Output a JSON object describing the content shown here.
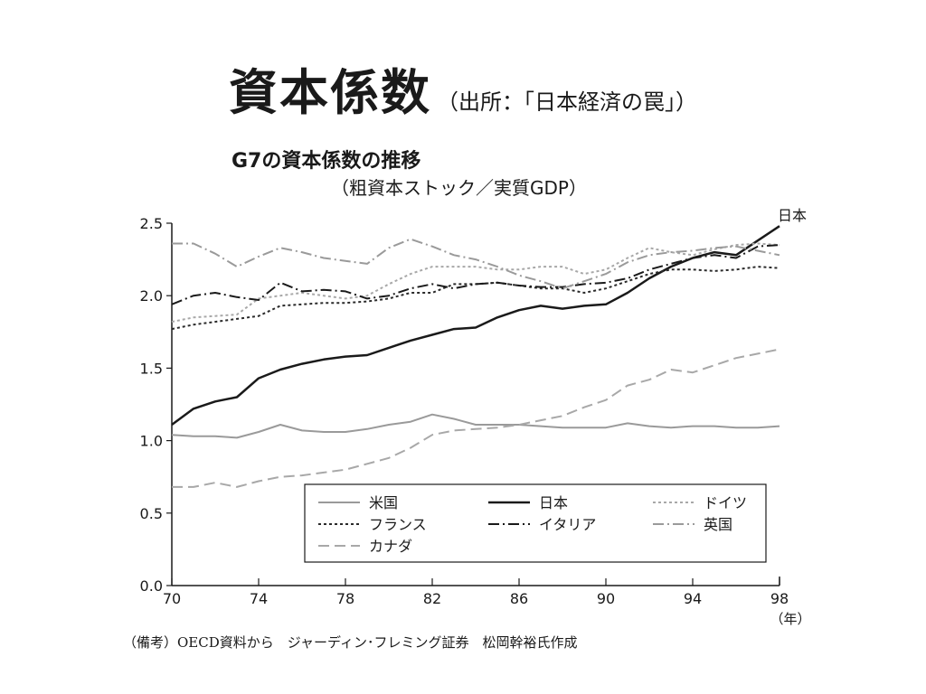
{
  "slide": {
    "title": "資本係数",
    "source": "（出所：「日本経済の罠」）",
    "footnote": "（備考）OECD資料から　ジャーディン･フレミング証券　松岡幹裕氏作成"
  },
  "chart_data": {
    "type": "line",
    "title": "G7の資本係数の推移",
    "subtitle": "（粗資本ストック／実質GDP）",
    "xlabel": "（年）",
    "ylabel": "",
    "xlim": [
      70,
      98
    ],
    "ylim": [
      0,
      2.5
    ],
    "x_ticks": [
      "70",
      "74",
      "78",
      "82",
      "86",
      "90",
      "94",
      "98"
    ],
    "y_ticks": [
      "0.0",
      "0.5",
      "1.0",
      "1.5",
      "2.0",
      "2.5"
    ],
    "annotations": [
      {
        "text": "日本",
        "series": "日本",
        "x": 98
      }
    ],
    "grid": false,
    "legend": "bottom-center box, 3 columns",
    "x": [
      70,
      71,
      72,
      73,
      74,
      75,
      76,
      77,
      78,
      79,
      80,
      81,
      82,
      83,
      84,
      85,
      86,
      87,
      88,
      89,
      90,
      91,
      92,
      93,
      94,
      95,
      96,
      97,
      98
    ],
    "series": [
      {
        "name": "米国",
        "color": "#9a9a9a",
        "dash": "solid",
        "values": [
          1.04,
          1.03,
          1.03,
          1.02,
          1.06,
          1.11,
          1.07,
          1.06,
          1.06,
          1.08,
          1.11,
          1.13,
          1.18,
          1.15,
          1.11,
          1.11,
          1.11,
          1.1,
          1.09,
          1.09,
          1.09,
          1.12,
          1.1,
          1.09,
          1.1,
          1.1,
          1.09,
          1.09,
          1.1
        ]
      },
      {
        "name": "日本",
        "color": "#1a1a1a",
        "dash": "solid",
        "values": [
          1.11,
          1.22,
          1.27,
          1.3,
          1.43,
          1.49,
          1.53,
          1.56,
          1.58,
          1.59,
          1.64,
          1.69,
          1.73,
          1.77,
          1.78,
          1.85,
          1.9,
          1.93,
          1.91,
          1.93,
          1.94,
          2.02,
          2.12,
          2.2,
          2.26,
          2.3,
          2.28,
          2.38,
          2.48
        ]
      },
      {
        "name": "ドイツ",
        "color": "#a8a8a8",
        "dash": "dotted",
        "values": [
          1.82,
          1.85,
          1.86,
          1.87,
          1.98,
          2.0,
          2.02,
          2.0,
          1.98,
          2.0,
          2.08,
          2.15,
          2.2,
          2.2,
          2.2,
          2.18,
          2.18,
          2.2,
          2.2,
          2.15,
          2.18,
          2.26,
          2.33,
          2.3,
          2.28,
          2.32,
          2.35,
          2.36,
          2.35
        ]
      },
      {
        "name": "フランス",
        "color": "#2a2a2a",
        "dash": "dotted",
        "values": [
          1.77,
          1.8,
          1.82,
          1.84,
          1.86,
          1.93,
          1.94,
          1.95,
          1.95,
          1.96,
          1.98,
          2.02,
          2.02,
          2.08,
          2.08,
          2.09,
          2.07,
          2.05,
          2.05,
          2.02,
          2.05,
          2.1,
          2.15,
          2.18,
          2.18,
          2.17,
          2.18,
          2.2,
          2.19
        ]
      },
      {
        "name": "イタリア",
        "color": "#1a1a1a",
        "dash": "dashdot",
        "values": [
          1.94,
          2.0,
          2.02,
          1.99,
          1.97,
          2.09,
          2.03,
          2.04,
          2.03,
          1.98,
          2.0,
          2.05,
          2.08,
          2.05,
          2.08,
          2.09,
          2.07,
          2.06,
          2.06,
          2.08,
          2.09,
          2.12,
          2.18,
          2.22,
          2.26,
          2.28,
          2.26,
          2.34,
          2.35
        ]
      },
      {
        "name": "英国",
        "color": "#9a9a9a",
        "dash": "dashdot",
        "values": [
          2.36,
          2.36,
          2.29,
          2.2,
          2.27,
          2.33,
          2.3,
          2.26,
          2.24,
          2.22,
          2.33,
          2.39,
          2.34,
          2.28,
          2.25,
          2.2,
          2.14,
          2.1,
          2.05,
          2.1,
          2.15,
          2.23,
          2.28,
          2.3,
          2.31,
          2.33,
          2.34,
          2.31,
          2.28
        ]
      },
      {
        "name": "カナダ",
        "color": "#a8a8a8",
        "dash": "dashed",
        "values": [
          0.68,
          0.68,
          0.71,
          0.68,
          0.72,
          0.75,
          0.76,
          0.78,
          0.8,
          0.84,
          0.88,
          0.95,
          1.04,
          1.07,
          1.08,
          1.09,
          1.11,
          1.14,
          1.17,
          1.23,
          1.28,
          1.38,
          1.42,
          1.49,
          1.47,
          1.52,
          1.57,
          1.6,
          1.63
        ]
      }
    ]
  }
}
